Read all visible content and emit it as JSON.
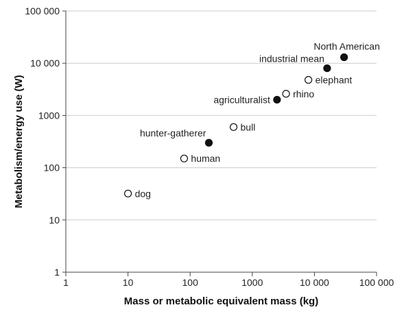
{
  "chart_data": {
    "type": "scatter",
    "title": "",
    "xlabel": "Mass or metabolic equivalent mass (kg)",
    "ylabel": "Metabolism/energy use (W)",
    "xscale": "log",
    "yscale": "log",
    "xlim": [
      1,
      100000
    ],
    "ylim": [
      1,
      100000
    ],
    "grid": "horizontal",
    "x_ticks": [
      "1",
      "10",
      "100",
      "1000",
      "10 000",
      "100 000"
    ],
    "y_ticks": [
      "1",
      "10",
      "100",
      "1000",
      "10 000",
      "100 000"
    ],
    "colors": {
      "filled": "#111111",
      "open_fill": "#ffffff",
      "gridline": "#cccccc",
      "axis": "#444444"
    },
    "points": [
      {
        "label": "dog",
        "x": 10,
        "y": 32,
        "marker": "open",
        "label_pos": "right"
      },
      {
        "label": "human",
        "x": 80,
        "y": 150,
        "marker": "open",
        "label_pos": "right"
      },
      {
        "label": "hunter-gatherer",
        "x": 200,
        "y": 300,
        "marker": "filled",
        "label_pos": "upper-left"
      },
      {
        "label": "bull",
        "x": 500,
        "y": 600,
        "marker": "open",
        "label_pos": "right"
      },
      {
        "label": "agriculturalist",
        "x": 2500,
        "y": 2000,
        "marker": "filled",
        "label_pos": "left"
      },
      {
        "label": "rhino",
        "x": 3500,
        "y": 2600,
        "marker": "open",
        "label_pos": "right"
      },
      {
        "label": "elephant",
        "x": 8000,
        "y": 4800,
        "marker": "open",
        "label_pos": "right"
      },
      {
        "label": "industrial mean",
        "x": 16000,
        "y": 8000,
        "marker": "filled",
        "label_pos": "upper-left"
      },
      {
        "label": "North American",
        "x": 30000,
        "y": 13000,
        "marker": "filled",
        "label_pos": "above"
      }
    ]
  }
}
